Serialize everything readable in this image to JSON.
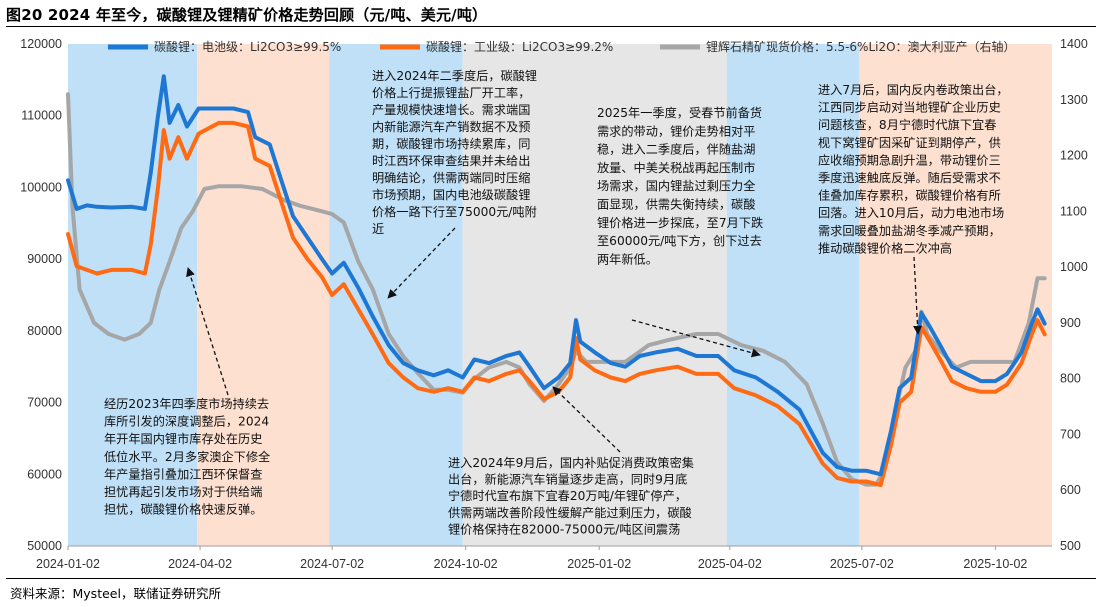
{
  "title": "图20 2024 年至今，碳酸锂及锂精矿价格走势回顾（元/吨、美元/吨）",
  "source": "资料来源：Mysteel，联储证券研究所",
  "colors": {
    "series": [
      "#1f77d4",
      "#ff6a13",
      "#a6a6a6"
    ],
    "band_blue": "#bfe0f7",
    "band_orange": "#fde0d0",
    "band_gray": "#e6e6e6"
  },
  "annotations": [
    [
      "进入2024年二季度后，碳酸锂",
      "价格上行提振锂盐厂开工率，",
      "产量规模快速增长。需求端国",
      "内新能源汽车产销数据不及预",
      "期，碳酸锂市场持续累库，同",
      "时江西环保审查结果并未给出",
      "明确结论，供需两端同时压缩",
      "市场预期，国内电池级碳酸锂",
      "价格一路下行至75000元/吨附",
      "近"
    ],
    [
      "2025年一季度，受春节前备货",
      "需求的带动，锂价走势相对平",
      "稳，进入二季度后，伴随盐湖",
      "放量、中美关税战再起压制市",
      "场需求，国内锂盐过剩压力全",
      "面显现，供需失衡持续，碳酸",
      "锂价格进一步探底，至7月下跌",
      "至60000元/吨下方，创下过去",
      "两年新低。"
    ],
    [
      "进入7月后，国内反内卷政策出台，",
      "江西同步启动对当地锂矿企业历史",
      "问题核查，8月宁德时代旗下宜春",
      "枧下窝锂矿因采矿证到期停产，供",
      "应收缩预期急剧升温，带动锂价三",
      "季度迅速触底反弹。随后受需求不",
      "佳叠加库存累积，碳酸锂价格有所",
      "回落。进入10月后，动力电池市场",
      "需求回暖叠加盐湖冬季减产预期，",
      "推动碳酸锂价格二次冲高"
    ],
    [
      "经历2023年四季度市场持续去",
      "库所引发的深度调整后，2024",
      "年开年国内锂市库存处在历史",
      "低位水平。2月多家澳企下修全",
      "年产量指引叠加江西环保督查",
      "担忧再起引发市场对于供给端",
      "担忧，碳酸锂价格快速反弹。"
    ],
    [
      "进入2024年9月后，国内补贴促消费政策密集",
      "出台，新能源汽车销量逐步走高，同时9月底",
      "宁德时代宣布旗下宜春20万吨/年锂矿停产，",
      "供需两端改善阶段性缓解产能过剩压力，碳酸",
      "锂价格保持在82000-75000元/吨区间震荡"
    ]
  ],
  "chart_data": {
    "type": "line",
    "x_ticks": [
      "2024-01-02",
      "2024-04-02",
      "2024-07-02",
      "2024-10-02",
      "2025-01-02",
      "2025-04-02",
      "2025-07-02",
      "2025-10-02"
    ],
    "y_left": {
      "ticks": [
        "50000",
        "60000",
        "70000",
        "80000",
        "90000",
        "100000",
        "110000",
        "120000"
      ],
      "range": [
        50000,
        120000
      ]
    },
    "y_right": {
      "ticks": [
        "500",
        "600",
        "700",
        "800",
        "900",
        "1000",
        "1100",
        "1200",
        "1300",
        "1400"
      ],
      "range": [
        500,
        1400
      ],
      "label": "右轴"
    },
    "bands": [
      {
        "from": "2024-01-02",
        "to": "2024-03-31",
        "color": "blue"
      },
      {
        "from": "2024-03-31",
        "to": "2024-06-30",
        "color": "orange"
      },
      {
        "from": "2024-06-30",
        "to": "2024-09-30",
        "color": "blue"
      },
      {
        "from": "2024-09-30",
        "to": "2025-03-31",
        "color": "gray"
      },
      {
        "from": "2025-03-31",
        "to": "2025-06-30",
        "color": "blue"
      },
      {
        "from": "2025-06-30",
        "to": "2025-12-01",
        "color": "orange"
      }
    ],
    "series": [
      {
        "name": "碳酸锂：电池级：Li2CO3≥99.5%",
        "axis": "left",
        "points": [
          [
            "2024-01-02",
            101000
          ],
          [
            "2024-01-08",
            97000
          ],
          [
            "2024-01-15",
            97500
          ],
          [
            "2024-01-22",
            97300
          ],
          [
            "2024-02-01",
            97200
          ],
          [
            "2024-02-15",
            97300
          ],
          [
            "2024-02-24",
            97000
          ],
          [
            "2024-02-28",
            102000
          ],
          [
            "2024-03-04",
            110000
          ],
          [
            "2024-03-08",
            115500
          ],
          [
            "2024-03-12",
            109000
          ],
          [
            "2024-03-18",
            111500
          ],
          [
            "2024-03-24",
            108500
          ],
          [
            "2024-04-01",
            111000
          ],
          [
            "2024-04-15",
            111000
          ],
          [
            "2024-04-25",
            111000
          ],
          [
            "2024-05-05",
            110500
          ],
          [
            "2024-05-10",
            107000
          ],
          [
            "2024-05-20",
            106000
          ],
          [
            "2024-05-28",
            101000
          ],
          [
            "2024-06-05",
            96000
          ],
          [
            "2024-06-15",
            93000
          ],
          [
            "2024-06-25",
            90000
          ],
          [
            "2024-07-02",
            88000
          ],
          [
            "2024-07-10",
            89500
          ],
          [
            "2024-07-20",
            86000
          ],
          [
            "2024-07-30",
            82000
          ],
          [
            "2024-08-10",
            78000
          ],
          [
            "2024-08-20",
            75500
          ],
          [
            "2024-08-30",
            74500
          ],
          [
            "2024-09-10",
            73800
          ],
          [
            "2024-09-20",
            74500
          ],
          [
            "2024-09-30",
            73500
          ],
          [
            "2024-10-08",
            76000
          ],
          [
            "2024-10-18",
            75500
          ],
          [
            "2024-10-30",
            76500
          ],
          [
            "2024-11-08",
            77000
          ],
          [
            "2024-11-15",
            75000
          ],
          [
            "2024-11-25",
            72000
          ],
          [
            "2024-12-05",
            73500
          ],
          [
            "2024-12-13",
            75500
          ],
          [
            "2024-12-17",
            81500
          ],
          [
            "2024-12-20",
            78500
          ],
          [
            "2024-12-30",
            77000
          ],
          [
            "2025-01-10",
            75500
          ],
          [
            "2025-01-20",
            75000
          ],
          [
            "2025-01-30",
            76500
          ],
          [
            "2025-02-10",
            77000
          ],
          [
            "2025-02-25",
            77500
          ],
          [
            "2025-03-10",
            76500
          ],
          [
            "2025-03-25",
            76500
          ],
          [
            "2025-04-05",
            74500
          ],
          [
            "2025-04-20",
            73500
          ],
          [
            "2025-05-05",
            71500
          ],
          [
            "2025-05-20",
            69000
          ],
          [
            "2025-06-05",
            63000
          ],
          [
            "2025-06-15",
            61000
          ],
          [
            "2025-06-25",
            60500
          ],
          [
            "2025-07-05",
            60500
          ],
          [
            "2025-07-15",
            60000
          ],
          [
            "2025-07-22",
            66000
          ],
          [
            "2025-07-28",
            72000
          ],
          [
            "2025-08-05",
            73500
          ],
          [
            "2025-08-12",
            82500
          ],
          [
            "2025-08-18",
            80500
          ],
          [
            "2025-08-25",
            78000
          ],
          [
            "2025-09-02",
            75000
          ],
          [
            "2025-09-12",
            74000
          ],
          [
            "2025-09-22",
            73000
          ],
          [
            "2025-10-02",
            73000
          ],
          [
            "2025-10-10",
            74000
          ],
          [
            "2025-10-20",
            77000
          ],
          [
            "2025-10-27",
            81000
          ],
          [
            "2025-10-31",
            83000
          ],
          [
            "2025-11-05",
            81000
          ]
        ]
      },
      {
        "name": "碳酸锂：工业级：Li2CO3≥99.2%",
        "axis": "left",
        "points": [
          [
            "2024-01-02",
            93500
          ],
          [
            "2024-01-08",
            89000
          ],
          [
            "2024-01-15",
            88500
          ],
          [
            "2024-01-22",
            88000
          ],
          [
            "2024-02-01",
            88500
          ],
          [
            "2024-02-15",
            88500
          ],
          [
            "2024-02-24",
            88000
          ],
          [
            "2024-02-28",
            92000
          ],
          [
            "2024-03-04",
            100000
          ],
          [
            "2024-03-08",
            108000
          ],
          [
            "2024-03-12",
            104000
          ],
          [
            "2024-03-18",
            107000
          ],
          [
            "2024-03-24",
            104000
          ],
          [
            "2024-04-01",
            107500
          ],
          [
            "2024-04-15",
            109000
          ],
          [
            "2024-04-25",
            109000
          ],
          [
            "2024-05-05",
            108500
          ],
          [
            "2024-05-10",
            104000
          ],
          [
            "2024-05-20",
            103000
          ],
          [
            "2024-05-28",
            98000
          ],
          [
            "2024-06-05",
            93000
          ],
          [
            "2024-06-15",
            90000
          ],
          [
            "2024-06-25",
            87500
          ],
          [
            "2024-07-02",
            85000
          ],
          [
            "2024-07-10",
            86500
          ],
          [
            "2024-07-20",
            83000
          ],
          [
            "2024-07-30",
            79500
          ],
          [
            "2024-08-10",
            75500
          ],
          [
            "2024-08-20",
            73500
          ],
          [
            "2024-08-30",
            72000
          ],
          [
            "2024-09-10",
            71500
          ],
          [
            "2024-09-20",
            72000
          ],
          [
            "2024-09-30",
            71500
          ],
          [
            "2024-10-08",
            73500
          ],
          [
            "2024-10-18",
            73000
          ],
          [
            "2024-10-30",
            74000
          ],
          [
            "2024-11-08",
            74500
          ],
          [
            "2024-11-15",
            73000
          ],
          [
            "2024-11-25",
            70500
          ],
          [
            "2024-12-05",
            71500
          ],
          [
            "2024-12-13",
            73500
          ],
          [
            "2024-12-17",
            79000
          ],
          [
            "2024-12-20",
            76000
          ],
          [
            "2024-12-30",
            74500
          ],
          [
            "2025-01-10",
            73500
          ],
          [
            "2025-01-20",
            73000
          ],
          [
            "2025-01-30",
            74000
          ],
          [
            "2025-02-10",
            74500
          ],
          [
            "2025-02-25",
            75000
          ],
          [
            "2025-03-10",
            74000
          ],
          [
            "2025-03-25",
            74000
          ],
          [
            "2025-04-05",
            72000
          ],
          [
            "2025-04-20",
            71000
          ],
          [
            "2025-05-05",
            69500
          ],
          [
            "2025-05-20",
            67000
          ],
          [
            "2025-06-05",
            61500
          ],
          [
            "2025-06-15",
            59500
          ],
          [
            "2025-06-25",
            59000
          ],
          [
            "2025-07-05",
            59000
          ],
          [
            "2025-07-15",
            58500
          ],
          [
            "2025-07-22",
            64000
          ],
          [
            "2025-07-28",
            70000
          ],
          [
            "2025-08-05",
            71500
          ],
          [
            "2025-08-12",
            80500
          ],
          [
            "2025-08-18",
            78500
          ],
          [
            "2025-08-25",
            76000
          ],
          [
            "2025-09-02",
            73000
          ],
          [
            "2025-09-12",
            72000
          ],
          [
            "2025-09-22",
            71500
          ],
          [
            "2025-10-02",
            71500
          ],
          [
            "2025-10-10",
            72500
          ],
          [
            "2025-10-20",
            75500
          ],
          [
            "2025-10-27",
            79500
          ],
          [
            "2025-10-31",
            81500
          ],
          [
            "2025-11-05",
            79500
          ]
        ]
      },
      {
        "name": "锂辉石精矿现货价格：5.5-6%Li2O：澳大利亚产（右轴）",
        "axis": "right",
        "points": [
          [
            "2024-01-02",
            1310
          ],
          [
            "2024-01-05",
            1110
          ],
          [
            "2024-01-10",
            960
          ],
          [
            "2024-01-20",
            900
          ],
          [
            "2024-01-30",
            880
          ],
          [
            "2024-02-10",
            870
          ],
          [
            "2024-02-20",
            880
          ],
          [
            "2024-02-28",
            900
          ],
          [
            "2024-03-05",
            960
          ],
          [
            "2024-03-12",
            1010
          ],
          [
            "2024-03-20",
            1070
          ],
          [
            "2024-03-28",
            1100
          ],
          [
            "2024-04-05",
            1140
          ],
          [
            "2024-04-15",
            1145
          ],
          [
            "2024-04-30",
            1145
          ],
          [
            "2024-05-15",
            1140
          ],
          [
            "2024-05-30",
            1120
          ],
          [
            "2024-06-10",
            1110
          ],
          [
            "2024-06-25",
            1100
          ],
          [
            "2024-07-02",
            1095
          ],
          [
            "2024-07-10",
            1080
          ],
          [
            "2024-07-20",
            1010
          ],
          [
            "2024-07-30",
            960
          ],
          [
            "2024-08-10",
            880
          ],
          [
            "2024-08-20",
            840
          ],
          [
            "2024-08-30",
            810
          ],
          [
            "2024-09-10",
            780
          ],
          [
            "2024-09-20",
            780
          ],
          [
            "2024-09-30",
            775
          ],
          [
            "2024-10-08",
            800
          ],
          [
            "2024-10-18",
            820
          ],
          [
            "2024-10-30",
            830
          ],
          [
            "2024-11-08",
            820
          ],
          [
            "2024-11-15",
            790
          ],
          [
            "2024-11-25",
            760
          ],
          [
            "2024-12-05",
            790
          ],
          [
            "2024-12-13",
            820
          ],
          [
            "2024-12-17",
            850
          ],
          [
            "2024-12-24",
            830
          ],
          [
            "2025-01-05",
            830
          ],
          [
            "2025-01-20",
            830
          ],
          [
            "2025-02-05",
            860
          ],
          [
            "2025-02-20",
            870
          ],
          [
            "2025-03-10",
            880
          ],
          [
            "2025-03-25",
            880
          ],
          [
            "2025-04-10",
            860
          ],
          [
            "2025-04-25",
            850
          ],
          [
            "2025-05-10",
            830
          ],
          [
            "2025-05-25",
            790
          ],
          [
            "2025-06-05",
            720
          ],
          [
            "2025-06-15",
            650
          ],
          [
            "2025-06-25",
            620
          ],
          [
            "2025-07-05",
            610
          ],
          [
            "2025-07-12",
            610
          ],
          [
            "2025-07-18",
            640
          ],
          [
            "2025-07-25",
            740
          ],
          [
            "2025-08-01",
            820
          ],
          [
            "2025-08-08",
            850
          ],
          [
            "2025-08-12",
            920
          ],
          [
            "2025-08-16",
            880
          ],
          [
            "2025-08-25",
            850
          ],
          [
            "2025-09-05",
            820
          ],
          [
            "2025-09-15",
            830
          ],
          [
            "2025-09-25",
            830
          ],
          [
            "2025-10-05",
            830
          ],
          [
            "2025-10-15",
            830
          ],
          [
            "2025-10-25",
            900
          ],
          [
            "2025-10-31",
            980
          ],
          [
            "2025-11-05",
            980
          ]
        ]
      }
    ]
  }
}
